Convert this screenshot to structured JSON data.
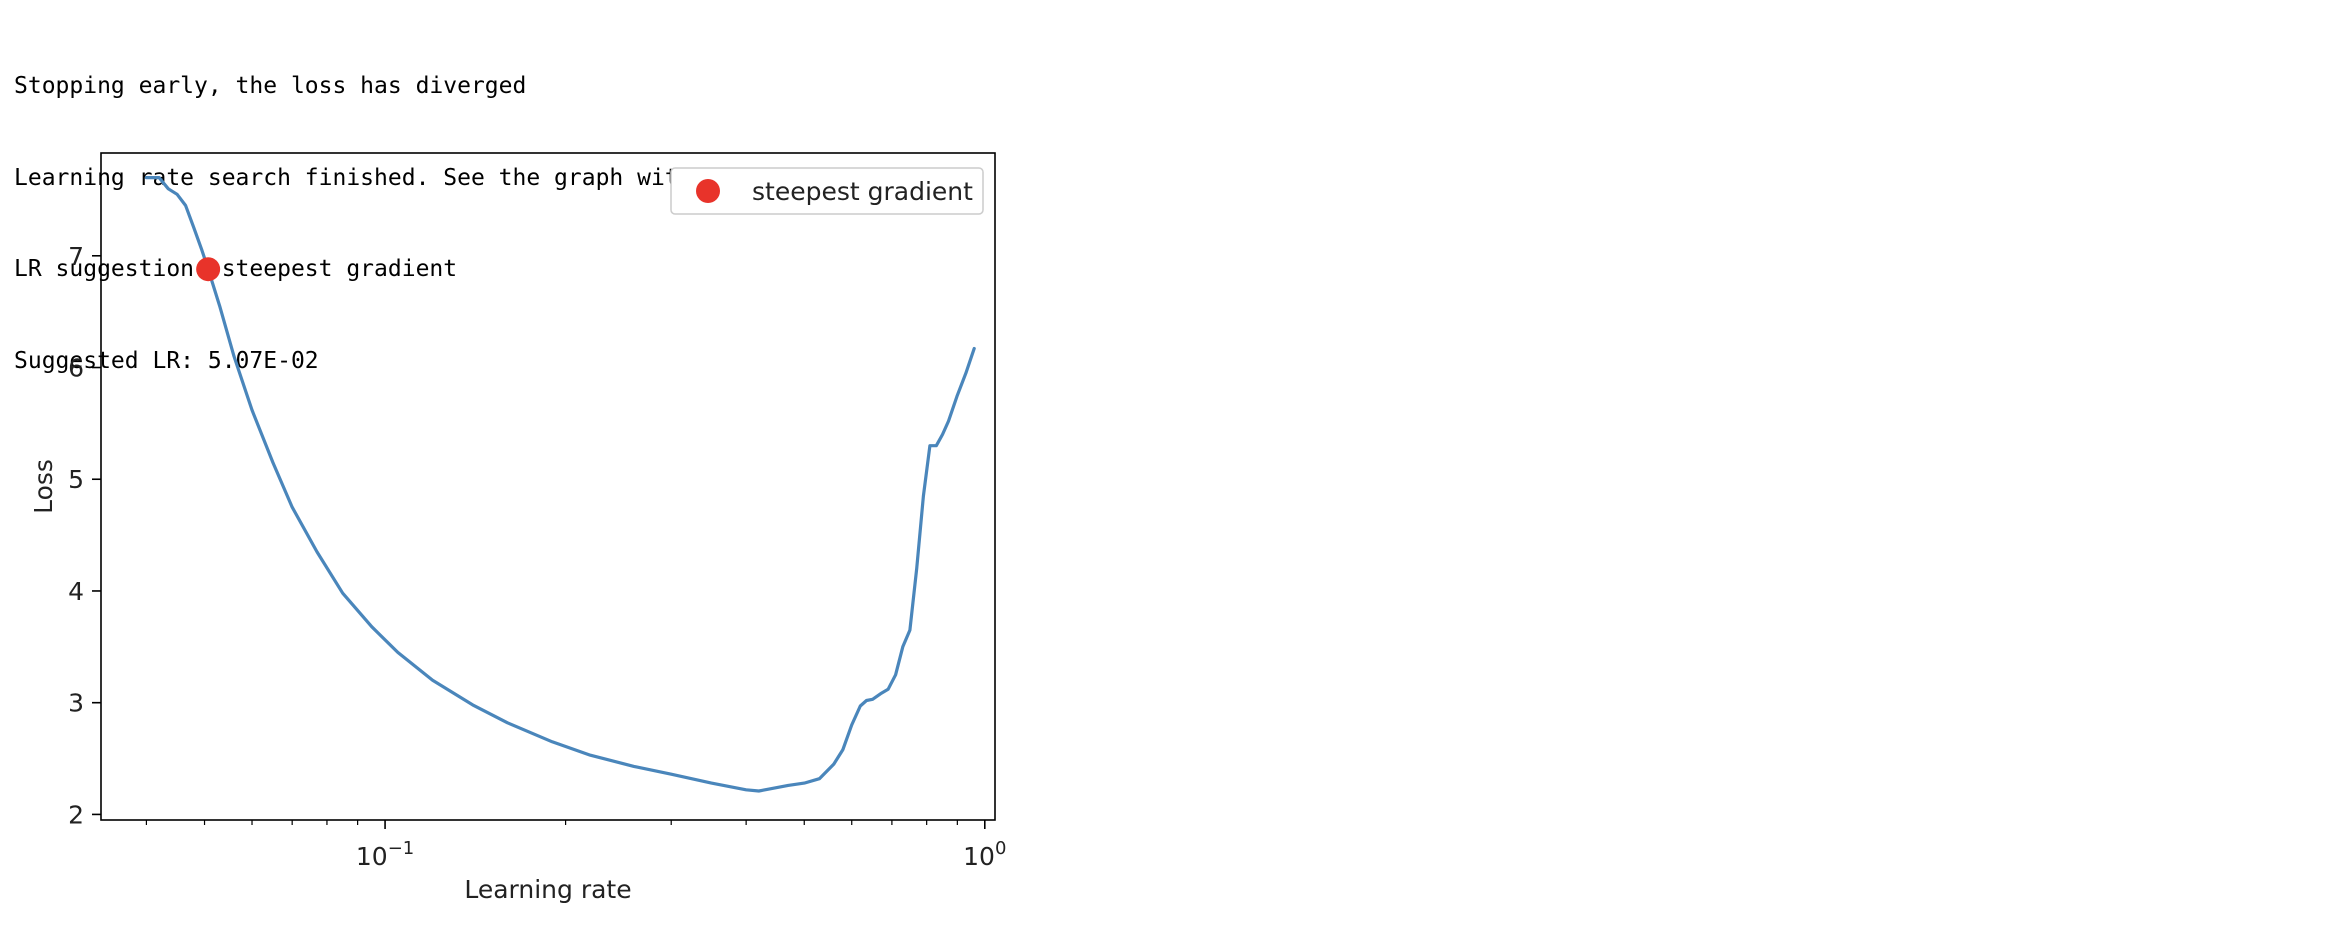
{
  "output": {
    "lines": [
      "Stopping early, the loss has diverged",
      "Learning rate search finished. See the graph with {finder_name}.plot()",
      "LR suggestion: steepest gradient",
      "Suggested LR: 5.07E-02"
    ]
  },
  "colors": {
    "line": "#4a86bb",
    "marker": "#e8332a"
  },
  "chart_data": {
    "type": "line",
    "title": "",
    "xlabel": "Learning rate",
    "ylabel": "Loss",
    "xscale": "log",
    "xlim": [
      0.0336,
      1.04
    ],
    "ylim": [
      1.95,
      7.92
    ],
    "grid": false,
    "legend_position": "top-right",
    "x_ticks": [
      {
        "value": 0.1,
        "base": "10",
        "exp": "−1"
      },
      {
        "value": 1.0,
        "base": "10",
        "exp": "0"
      }
    ],
    "x_minor_ticks": [
      0.04,
      0.05,
      0.06,
      0.07,
      0.08,
      0.09,
      0.2,
      0.3,
      0.4,
      0.5,
      0.6,
      0.7,
      0.8,
      0.9
    ],
    "y_ticks": [
      2,
      3,
      4,
      5,
      6,
      7
    ],
    "series": [
      {
        "name": "",
        "x": [
          0.04,
          0.042,
          0.0435,
          0.045,
          0.0465,
          0.048,
          0.0495,
          0.0507,
          0.053,
          0.056,
          0.06,
          0.065,
          0.07,
          0.077,
          0.085,
          0.095,
          0.105,
          0.12,
          0.14,
          0.16,
          0.19,
          0.22,
          0.26,
          0.3,
          0.35,
          0.4,
          0.42,
          0.44,
          0.47,
          0.5,
          0.53,
          0.56,
          0.58,
          0.6,
          0.62,
          0.635,
          0.65,
          0.67,
          0.69,
          0.71,
          0.73,
          0.75,
          0.77,
          0.79,
          0.81,
          0.83,
          0.85,
          0.87,
          0.9,
          0.93,
          0.96
        ],
        "y": [
          7.7,
          7.7,
          7.6,
          7.55,
          7.45,
          7.25,
          7.05,
          6.88,
          6.55,
          6.1,
          5.62,
          5.15,
          4.75,
          4.35,
          3.98,
          3.68,
          3.45,
          3.2,
          2.98,
          2.82,
          2.65,
          2.53,
          2.43,
          2.36,
          2.28,
          2.22,
          2.21,
          2.23,
          2.26,
          2.28,
          2.32,
          2.45,
          2.58,
          2.8,
          2.97,
          3.02,
          3.03,
          3.08,
          3.12,
          3.25,
          3.5,
          3.65,
          4.2,
          4.85,
          5.3,
          5.3,
          5.4,
          5.52,
          5.75,
          5.95,
          6.17
        ]
      }
    ],
    "points": [
      {
        "name": "steepest gradient",
        "x": 0.0507,
        "y": 6.88
      }
    ]
  }
}
